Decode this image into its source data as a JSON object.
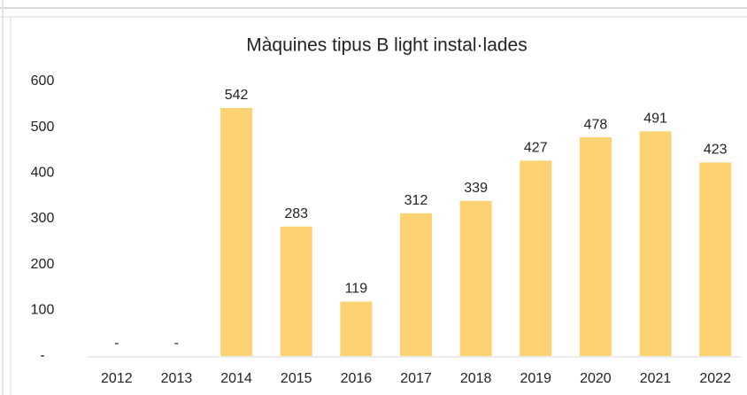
{
  "chart_data": {
    "type": "bar",
    "title": "Màquines tipus B light instal·lades",
    "categories": [
      "2012",
      "2013",
      "2014",
      "2015",
      "2016",
      "2017",
      "2018",
      "2019",
      "2020",
      "2021",
      "2022"
    ],
    "values": [
      0,
      0,
      542,
      283,
      119,
      312,
      339,
      427,
      478,
      491,
      423
    ],
    "value_labels": [
      "-",
      "-",
      "542",
      "283",
      "119",
      "312",
      "339",
      "427",
      "478",
      "491",
      "423"
    ],
    "color": "#fdd272",
    "ylim": [
      0,
      600
    ],
    "yticks": [
      {
        "value": 0,
        "label": "-"
      },
      100,
      200,
      300,
      400,
      500,
      600
    ],
    "grid": false
  }
}
